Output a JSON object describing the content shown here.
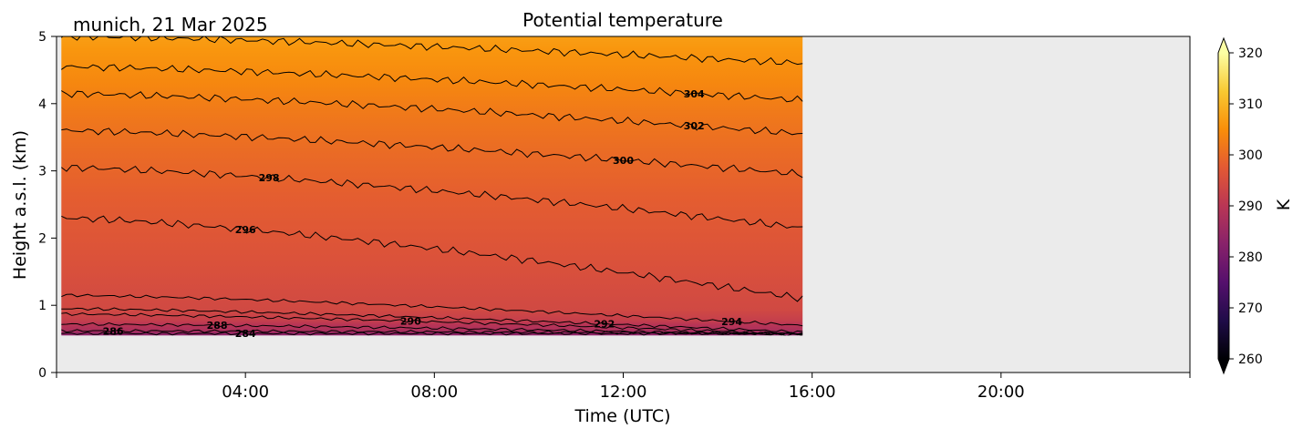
{
  "chart_data": {
    "type": "heatmap",
    "title": "Potential temperature",
    "location_date": "munich, 21 Mar 2025",
    "xlabel": "Time (UTC)",
    "ylabel": "Height a.s.l. (km)",
    "xlim_hours": [
      0,
      24
    ],
    "ylim_km": [
      0,
      5
    ],
    "x_tick_hours": [
      4,
      8,
      12,
      16,
      20
    ],
    "x_tick_labels": [
      "04:00",
      "08:00",
      "12:00",
      "16:00",
      "20:00"
    ],
    "y_ticks": [
      0,
      1,
      2,
      3,
      4,
      5
    ],
    "y_tick_labels": [
      "0",
      "1",
      "2",
      "3",
      "4",
      "5"
    ],
    "data_extent": {
      "time_start_h": 0.1,
      "time_end_h": 15.8,
      "height_min_km": 0.55,
      "height_max_km": 5.0
    },
    "no_data_color": "#ebebeb",
    "colorbar": {
      "label": "K",
      "min": 260,
      "max": 320,
      "ticks": [
        260,
        270,
        280,
        290,
        300,
        310,
        320
      ],
      "tick_labels": [
        "260",
        "270",
        "280",
        "290",
        "300",
        "310",
        "320"
      ],
      "extend": "both",
      "colormap": "inferno",
      "colormap_stops": [
        "#000004",
        "#1f0c48",
        "#550f6d",
        "#88226a",
        "#ba3655",
        "#e35933",
        "#f98e09",
        "#f8c932",
        "#fcffa4"
      ]
    },
    "contours": [
      {
        "level": 284,
        "height_start_km": 0.58,
        "height_end_km": 0.58,
        "label": "284",
        "label_at_h": 4.0
      },
      {
        "level": 286,
        "height_start_km": 0.62,
        "height_end_km": 0.58,
        "label": "286",
        "label_at_h": 1.2
      },
      {
        "level": 288,
        "height_start_km": 0.72,
        "height_end_km": 0.56,
        "label": "288",
        "label_at_h": 3.4
      },
      {
        "level": 290,
        "height_start_km": 0.87,
        "height_end_km": 0.57,
        "label": "290",
        "label_at_h": 7.5
      },
      {
        "level": 292,
        "height_start_km": 0.95,
        "height_end_km": 0.6,
        "label": "292",
        "label_at_h": 11.6
      },
      {
        "level": 294,
        "height_start_km": 1.15,
        "height_end_km": 0.7,
        "label": "294",
        "label_at_h": 14.3
      },
      {
        "level": 296,
        "height_start_km": 2.3,
        "height_end_km": 1.1,
        "label": "296",
        "label_at_h": 4.0
      },
      {
        "level": 298,
        "height_start_km": 3.05,
        "height_end_km": 2.15,
        "label": "298",
        "label_at_h": 4.5
      },
      {
        "level": 300,
        "height_start_km": 3.6,
        "height_end_km": 2.95,
        "label": "300",
        "label_at_h": 12.0
      },
      {
        "level": 302,
        "height_start_km": 4.15,
        "height_end_km": 3.55,
        "label": "302",
        "label_at_h": 13.5
      },
      {
        "level": 304,
        "height_start_km": 4.55,
        "height_end_km": 4.05,
        "label": "304",
        "label_at_h": 13.5
      },
      {
        "level": 306,
        "height_start_km": 5.0,
        "height_end_km": 4.6,
        "label": "",
        "label_at_h": null
      }
    ]
  }
}
